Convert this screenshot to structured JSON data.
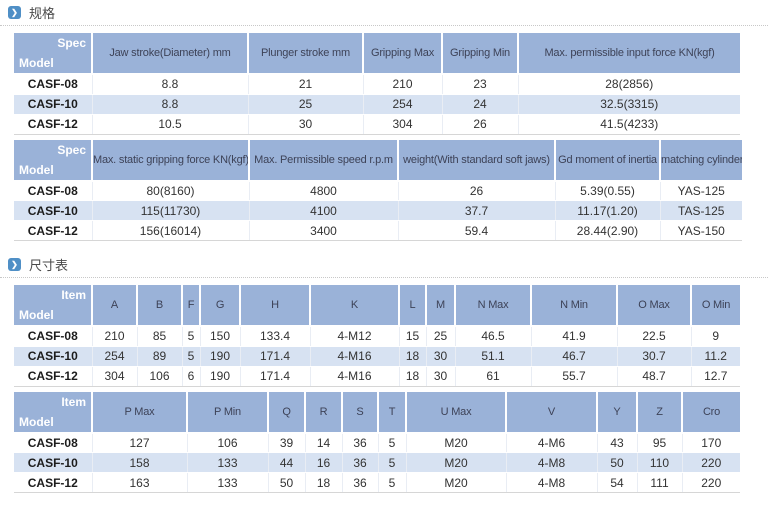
{
  "icons": {
    "section_arrow": "❯"
  },
  "colors": {
    "header_bg": "#9ab2d8",
    "row_alt_bg": "#d7e2f2",
    "icon_blue": "#4f8fc6",
    "header_text": "#3d4257"
  },
  "sections": [
    {
      "title": "规格",
      "tables": [
        {
          "corner": {
            "top": "Spec",
            "bottom": "Model"
          },
          "columns": [
            "Jaw stroke(Diameter) mm",
            "Plunger stroke mm",
            "Gripping Max",
            "Gripping Min",
            "Max. permissible input force KN(kgf)"
          ],
          "rows": [
            {
              "model": "CASF-08",
              "values": [
                "8.8",
                "21",
                "210",
                "23",
                "28(2856)"
              ]
            },
            {
              "model": "CASF-10",
              "values": [
                "8.8",
                "25",
                "254",
                "24",
                "32.5(3315)"
              ]
            },
            {
              "model": "CASF-12",
              "values": [
                "10.5",
                "30",
                "304",
                "26",
                "41.5(4233)"
              ]
            }
          ]
        },
        {
          "corner": {
            "top": "Spec",
            "bottom": "Model"
          },
          "columns": [
            "Max. static gripping force KN(kgf)",
            "Max. Permissible speed r.p.m",
            "weight(With standard soft jaws)",
            "Gd moment of inertia",
            "matching cylinder"
          ],
          "rows": [
            {
              "model": "CASF-08",
              "values": [
                "80(8160)",
                "4800",
                "26",
                "5.39(0.55)",
                "YAS-125"
              ]
            },
            {
              "model": "CASF-10",
              "values": [
                "115(11730)",
                "4100",
                "37.7",
                "11.17(1.20)",
                "TAS-125"
              ]
            },
            {
              "model": "CASF-12",
              "values": [
                "156(16014)",
                "3400",
                "59.4",
                "28.44(2.90)",
                "YAS-150"
              ]
            }
          ]
        }
      ]
    },
    {
      "title": "尺寸表",
      "tables": [
        {
          "corner": {
            "top": "Item",
            "bottom": "Model"
          },
          "columns": [
            "A",
            "B",
            "F",
            "G",
            "H",
            "K",
            "L",
            "M",
            "N Max",
            "N Min",
            "O Max",
            "O Min"
          ],
          "rows": [
            {
              "model": "CASF-08",
              "values": [
                "210",
                "85",
                "5",
                "150",
                "133.4",
                "4-M12",
                "15",
                "25",
                "46.5",
                "41.9",
                "22.5",
                "9"
              ]
            },
            {
              "model": "CASF-10",
              "values": [
                "254",
                "89",
                "5",
                "190",
                "171.4",
                "4-M16",
                "18",
                "30",
                "51.1",
                "46.7",
                "30.7",
                "11.2"
              ]
            },
            {
              "model": "CASF-12",
              "values": [
                "304",
                "106",
                "6",
                "190",
                "171.4",
                "4-M16",
                "18",
                "30",
                "61",
                "55.7",
                "48.7",
                "12.7"
              ]
            }
          ]
        },
        {
          "corner": {
            "top": "Item",
            "bottom": "Model"
          },
          "columns": [
            "P Max",
            "P Min",
            "Q",
            "R",
            "S",
            "T",
            "U Max",
            "V",
            "Y",
            "Z",
            "Cro"
          ],
          "rows": [
            {
              "model": "CASF-08",
              "values": [
                "127",
                "106",
                "39",
                "14",
                "36",
                "5",
                "M20",
                "4-M6",
                "43",
                "95",
                "170"
              ]
            },
            {
              "model": "CASF-10",
              "values": [
                "158",
                "133",
                "44",
                "16",
                "36",
                "5",
                "M20",
                "4-M8",
                "50",
                "110",
                "220"
              ]
            },
            {
              "model": "CASF-12",
              "values": [
                "163",
                "133",
                "50",
                "18",
                "36",
                "5",
                "M20",
                "4-M8",
                "54",
                "111",
                "220"
              ]
            }
          ]
        }
      ]
    }
  ]
}
